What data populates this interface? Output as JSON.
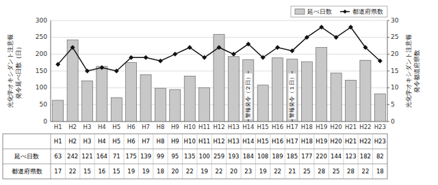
{
  "chart_data": {
    "type": "bar",
    "categories": [
      "H1",
      "H2",
      "H3",
      "H4",
      "H5",
      "H6",
      "H7",
      "H8",
      "H9",
      "H10",
      "H11",
      "H12",
      "H13",
      "H14",
      "H15",
      "H16",
      "H17",
      "H18",
      "H19",
      "H20",
      "H21",
      "H22",
      "H23"
    ],
    "series": [
      {
        "name": "延べ日数",
        "type": "bar",
        "color": "#c8c8c8",
        "values": [
          63,
          242,
          121,
          164,
          71,
          175,
          139,
          99,
          95,
          135,
          100,
          259,
          193,
          184,
          108,
          189,
          185,
          177,
          220,
          144,
          123,
          182,
          82
        ]
      },
      {
        "name": "都道府県数",
        "type": "line",
        "axis": "y2",
        "color": "#111111",
        "marker": "diamond",
        "values": [
          17,
          22,
          15,
          16,
          15,
          19,
          19,
          18,
          20,
          22,
          19,
          22,
          20,
          23,
          19,
          22,
          21,
          25,
          28,
          25,
          28,
          22,
          18
        ]
      }
    ],
    "ylabel": "光化学オキシダント注意報\n発令延べ日数（日）",
    "y2label": "光化学オキシダント注意報\n発令都道府県数",
    "ylim": [
      0,
      300
    ],
    "yticks": [
      0,
      50,
      100,
      150,
      200,
      250,
      300
    ],
    "y2lim": [
      0,
      30
    ],
    "y2ticks": [
      0,
      5,
      10,
      15,
      20,
      25,
      30
    ],
    "annotations": [
      {
        "text": "警報発令（２日）",
        "category": "H14"
      },
      {
        "text": "警報発令（１日）",
        "category": "H17"
      }
    ],
    "grid": true,
    "legend": "upper right"
  }
}
